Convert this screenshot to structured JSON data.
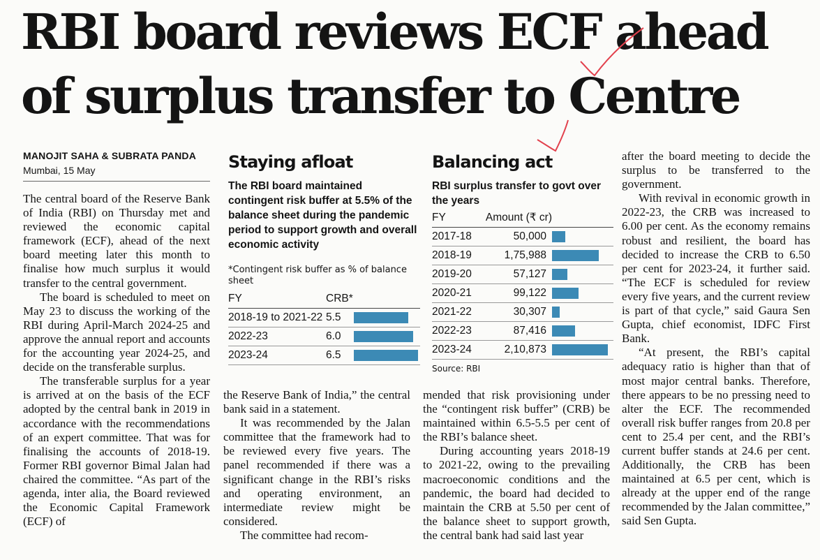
{
  "headline": {
    "line1": "RBI board reviews ECF ahead",
    "line2": "of surplus transfer to Centre"
  },
  "byline": "MANOJIT SAHA & SUBRATA PANDA",
  "dateline": "Mumbai, 15 May",
  "col1": [
    "The central board of the Reserve Bank of India (RBI) on Thursday met and reviewed the economic capital framework (ECF), ahead of the next board meeting later this month to finalise how much surplus it would transfer to the central government.",
    "The board is scheduled to meet on May 23 to discuss the working of the RBI during April-March 2024-25 and approve the annual report and accounts for the accounting year 2024-25, and decide on the transferable surplus.",
    "The transferable surplus for a year is arrived at on the basis of the ECF adopted by the central bank in 2019 in accordance with the recommendations of an expert committee. That was for finalising the accounts of 2018-19. Former RBI governor Bimal Jalan had chaired the committee. “As part of the agenda, inter alia, the Board reviewed the Economic Capital Framework (ECF) of"
  ],
  "col2": [
    "the Reserve Bank of India,” the central bank said in a statement.",
    "It was recommended by the Jalan committee that the framework had to be reviewed every five years. The panel recommended if there was a significant change in the RBI’s risks and operating environment, an intermediate review might be considered.",
    "The committee had recom-"
  ],
  "col3": [
    "mended that risk provisioning under the “contingent risk buffer” (CRB) be maintained within 6.5-5.5 per cent of the RBI’s balance sheet.",
    "During accounting years 2018-19 to 2021-22, owing to the prevailing macroeconomic conditions and the pandemic, the board had decided to maintain the CRB at 5.50 per cent of the balance sheet to support growth, the central bank had said last year"
  ],
  "col4": [
    "after the board meeting to decide the surplus to be transferred to the government.",
    "With revival in economic growth in 2022-23, the CRB was increased to 6.00 per cent. As the economy remains robust and resilient, the board has decided to increase the CRB to 6.50 per cent for 2023-24, it further said. “The ECF is scheduled for review every five years, and the current review is part of that cycle,” said Gaura Sen Gupta, chief economist, IDFC First Bank.",
    "“At present, the RBI’s capital adequacy ratio is higher than that of most major central banks. Therefore, there appears to be no pressing need to alter the ECF. The recommended overall risk buffer ranges from 20.8 per cent to 25.4 per cent, and the RBI’s current buffer stands at 24.6 per cent. Additionally, the CRB has been maintained at 6.5 per cent, which is already at the upper end of the range recommended by the Jalan committee,” said Sen Gupta."
  ],
  "chart_data": [
    {
      "type": "bar",
      "title": "Staying afloat",
      "subtitle": "The RBI board maintained contingent risk buffer at 5.5% of the balance sheet during the pandemic period to support growth and overall economic activity",
      "note": "*Contingent risk buffer as % of balance sheet",
      "col_headers": [
        "FY",
        "CRB*"
      ],
      "categories": [
        "2018-19 to 2021-22",
        "2022-23",
        "2023-24"
      ],
      "labels": [
        "5.5",
        "6.0",
        "6.5"
      ],
      "values": [
        5.5,
        6.0,
        6.5
      ],
      "bar_color": "#3c8ab5"
    },
    {
      "type": "bar",
      "title": "Balancing act",
      "subtitle": "RBI surplus transfer to govt over the years",
      "col_headers": [
        "FY",
        "Amount (₹ cr)"
      ],
      "categories": [
        "2017-18",
        "2018-19",
        "2019-20",
        "2020-21",
        "2021-22",
        "2022-23",
        "2023-24"
      ],
      "labels": [
        "50,000",
        "1,75,988",
        "57,127",
        "99,122",
        "30,307",
        "87,416",
        "2,10,873"
      ],
      "values": [
        50000,
        175988,
        57127,
        99122,
        30307,
        87416,
        210873
      ],
      "source": "Source: RBI",
      "bar_color": "#3c8ab5"
    }
  ]
}
